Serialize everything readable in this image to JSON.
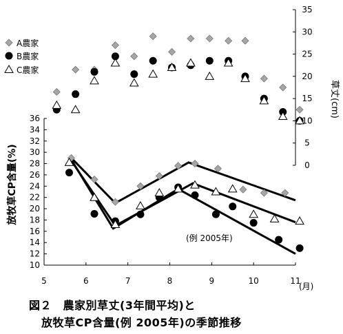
{
  "caption": {
    "line1": "図２　農家別草丈(3年間平均)と",
    "line2": "放牧草CP含量(例 2005年)の季節推移"
  },
  "colors": {
    "gray_marker": "#a6a6a6",
    "black": "#000000",
    "white": "#ffffff"
  },
  "chart_data": {
    "type": "scatter",
    "x_axis": {
      "ticks": [
        5,
        6,
        7,
        8,
        9,
        10,
        11
      ],
      "unit_label": "(月)",
      "range": [
        5,
        11
      ]
    },
    "left_axis": {
      "label": "放牧草CP含量(%)",
      "range": [
        10,
        36
      ],
      "ticks": [
        10,
        12,
        14,
        16,
        18,
        20,
        22,
        24,
        26,
        28,
        30,
        32,
        34,
        36
      ]
    },
    "right_axis": {
      "label": "草丈(cm)",
      "range": [
        0,
        35
      ],
      "ticks": [
        0,
        5,
        10,
        15,
        20,
        25,
        30,
        35
      ]
    },
    "legend": [
      {
        "label": "A農家",
        "marker": "diamond"
      },
      {
        "label": "B農家",
        "marker": "circle"
      },
      {
        "label": "C農家",
        "marker": "triangle"
      }
    ],
    "annotation": "(例 2005年)",
    "height_series": [
      {
        "name": "A農家",
        "marker": "diamond",
        "x": [
          5.3,
          5.75,
          6.2,
          6.7,
          7.15,
          7.6,
          8.05,
          8.5,
          8.95,
          9.4,
          9.8,
          10.25,
          10.7,
          11.1
        ],
        "y": [
          16.5,
          21.5,
          21.5,
          27,
          24.5,
          29,
          25.5,
          28.5,
          28.5,
          28,
          28,
          19.5,
          17.5,
          12.5
        ]
      },
      {
        "name": "B農家",
        "marker": "circle",
        "x": [
          5.3,
          5.75,
          6.2,
          6.7,
          7.15,
          7.6,
          8.05,
          8.5,
          8.95,
          9.4,
          9.8,
          10.25,
          10.7,
          11.1
        ],
        "y": [
          12.5,
          16,
          21,
          24.5,
          20.5,
          23.5,
          22,
          22.5,
          23.5,
          23.5,
          20,
          15,
          12,
          10
        ]
      },
      {
        "name": "C農家",
        "marker": "triangle",
        "x": [
          5.3,
          5.75,
          6.2,
          6.7,
          7.15,
          7.6,
          8.05,
          8.5,
          8.95,
          9.4,
          9.8,
          10.25,
          10.7,
          11.1
        ],
        "y": [
          13.5,
          12.5,
          19,
          23,
          18.5,
          20.5,
          22,
          23,
          20,
          23,
          19.5,
          14.5,
          11,
          10
        ]
      }
    ],
    "cp_series": [
      {
        "name": "A農家",
        "marker": "diamond",
        "x": [
          5.65,
          6.2,
          6.7,
          7.3,
          7.75,
          8.2,
          8.6,
          9.15,
          9.75,
          10.25,
          10.75
        ],
        "y": [
          29,
          25.2,
          21.2,
          24,
          25.8,
          27.6,
          28,
          27.1,
          23.4,
          22.8,
          22.8
        ]
      },
      {
        "name": "B農家",
        "marker": "circle",
        "x": [
          5.6,
          6.2,
          6.7,
          7.3,
          7.75,
          8.2,
          8.6,
          9.1,
          9.5,
          10,
          10.6,
          11.1
        ],
        "y": [
          26.4,
          19.1,
          17.8,
          19,
          22,
          23.8,
          22.4,
          19,
          20.4,
          17.5,
          14.5,
          13
        ]
      },
      {
        "name": "C農家",
        "marker": "triangle",
        "x": [
          5.6,
          6.2,
          6.7,
          7.3,
          7.75,
          8.2,
          8.6,
          9.1,
          9.5,
          10,
          10.5,
          11.1
        ],
        "y": [
          28.2,
          22,
          17.2,
          20.5,
          22.8,
          23.5,
          24.2,
          23,
          23.5,
          19,
          18.2,
          17.8
        ]
      }
    ],
    "trend_lines": [
      {
        "name": "A農家",
        "x": [
          5.65,
          6.7,
          8.45,
          11
        ],
        "y": [
          29,
          21,
          28.2,
          21.5
        ]
      },
      {
        "name": "B農家",
        "x": [
          5.65,
          6.65,
          8.2,
          11
        ],
        "y": [
          28.7,
          16.5,
          23.5,
          12
        ]
      },
      {
        "name": "C農家",
        "x": [
          5.65,
          6.7,
          8.55,
          11
        ],
        "y": [
          28.5,
          17,
          24.5,
          17.6
        ]
      }
    ]
  }
}
